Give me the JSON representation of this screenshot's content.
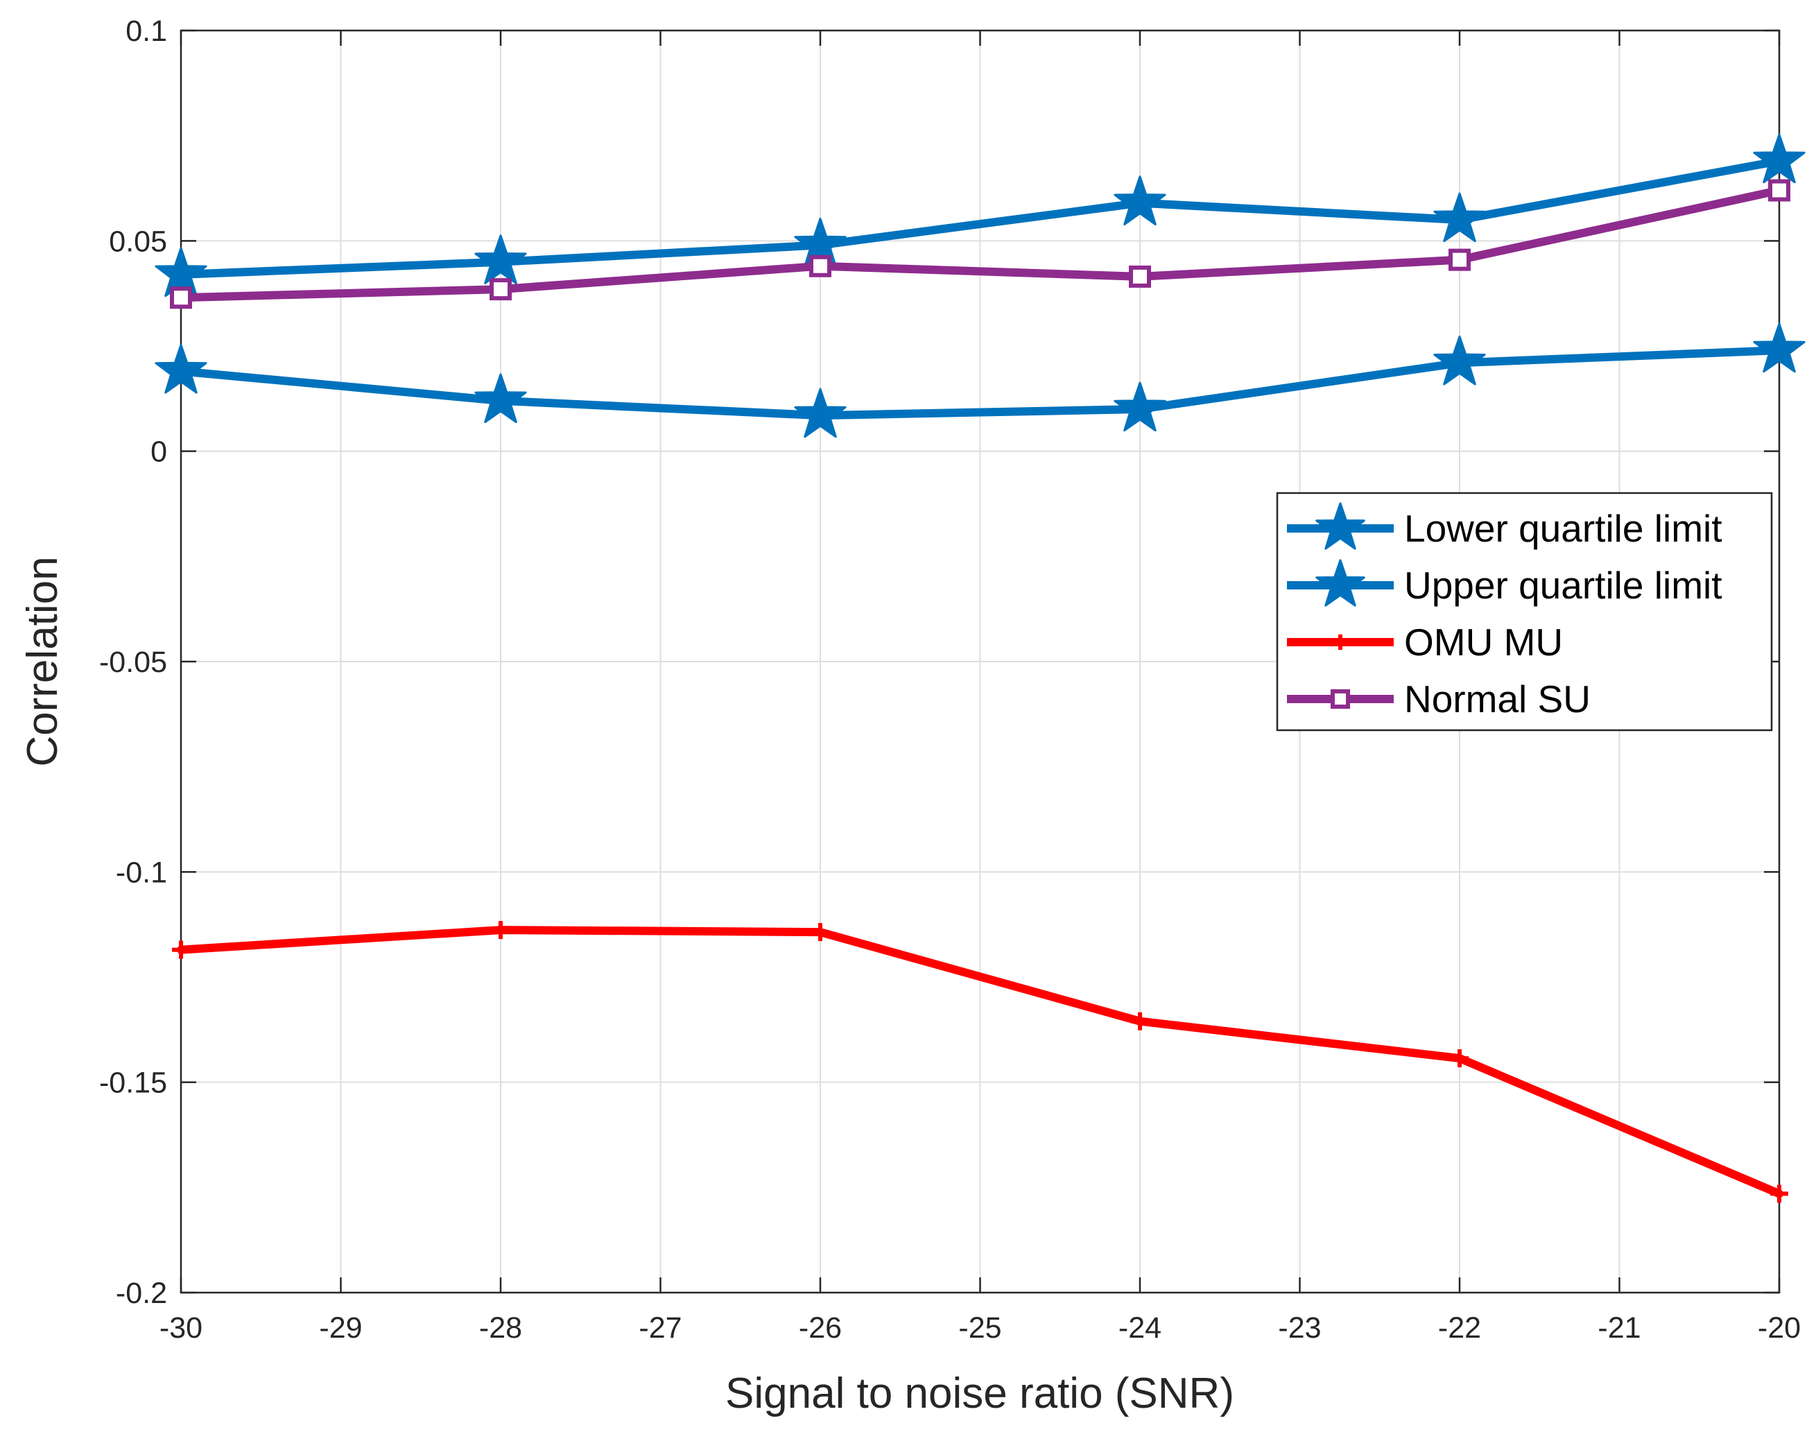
{
  "chart_data": {
    "type": "line",
    "title": "",
    "xlabel": "Signal to noise ratio (SNR)",
    "ylabel": "Correlation",
    "xlim": [
      -30,
      -20
    ],
    "ylim": [
      -0.2,
      0.1
    ],
    "grid": true,
    "legend_position": "center-right",
    "x_ticks": [
      -30,
      -29,
      -28,
      -27,
      -26,
      -25,
      -24,
      -23,
      -22,
      -21,
      -20
    ],
    "x_tick_labels": [
      "-30",
      "-29",
      "-28",
      "-27",
      "-26",
      "-25",
      "-24",
      "-23",
      "-22",
      "-21",
      "-20"
    ],
    "y_ticks": [
      -0.2,
      -0.15,
      -0.1,
      -0.05,
      0,
      0.05,
      0.1
    ],
    "y_tick_labels": [
      "-0.2",
      "-0.15",
      "-0.1",
      "-0.05",
      "0",
      "0.05",
      "0.1"
    ],
    "x": [
      -30,
      -28,
      -26,
      -24,
      -22,
      -20
    ],
    "series": [
      {
        "name": "Lower quartile limit",
        "color": "#0072BD",
        "marker": "star",
        "values": [
          0.019,
          0.012,
          0.0085,
          0.01,
          0.021,
          0.024
        ]
      },
      {
        "name": "Upper quartile limit",
        "color": "#0072BD",
        "marker": "star",
        "values": [
          0.042,
          0.045,
          0.049,
          0.059,
          0.055,
          0.069
        ]
      },
      {
        "name": "OMU MU",
        "color": "#FF0000",
        "marker": "plus",
        "values": [
          -0.1185,
          -0.1138,
          -0.1143,
          -0.1355,
          -0.1443,
          -0.1765
        ]
      },
      {
        "name": "Normal SU",
        "color": "#8E2C8E",
        "marker": "square",
        "values": [
          0.0365,
          0.0385,
          0.044,
          0.0415,
          0.0455,
          0.062
        ]
      }
    ]
  }
}
